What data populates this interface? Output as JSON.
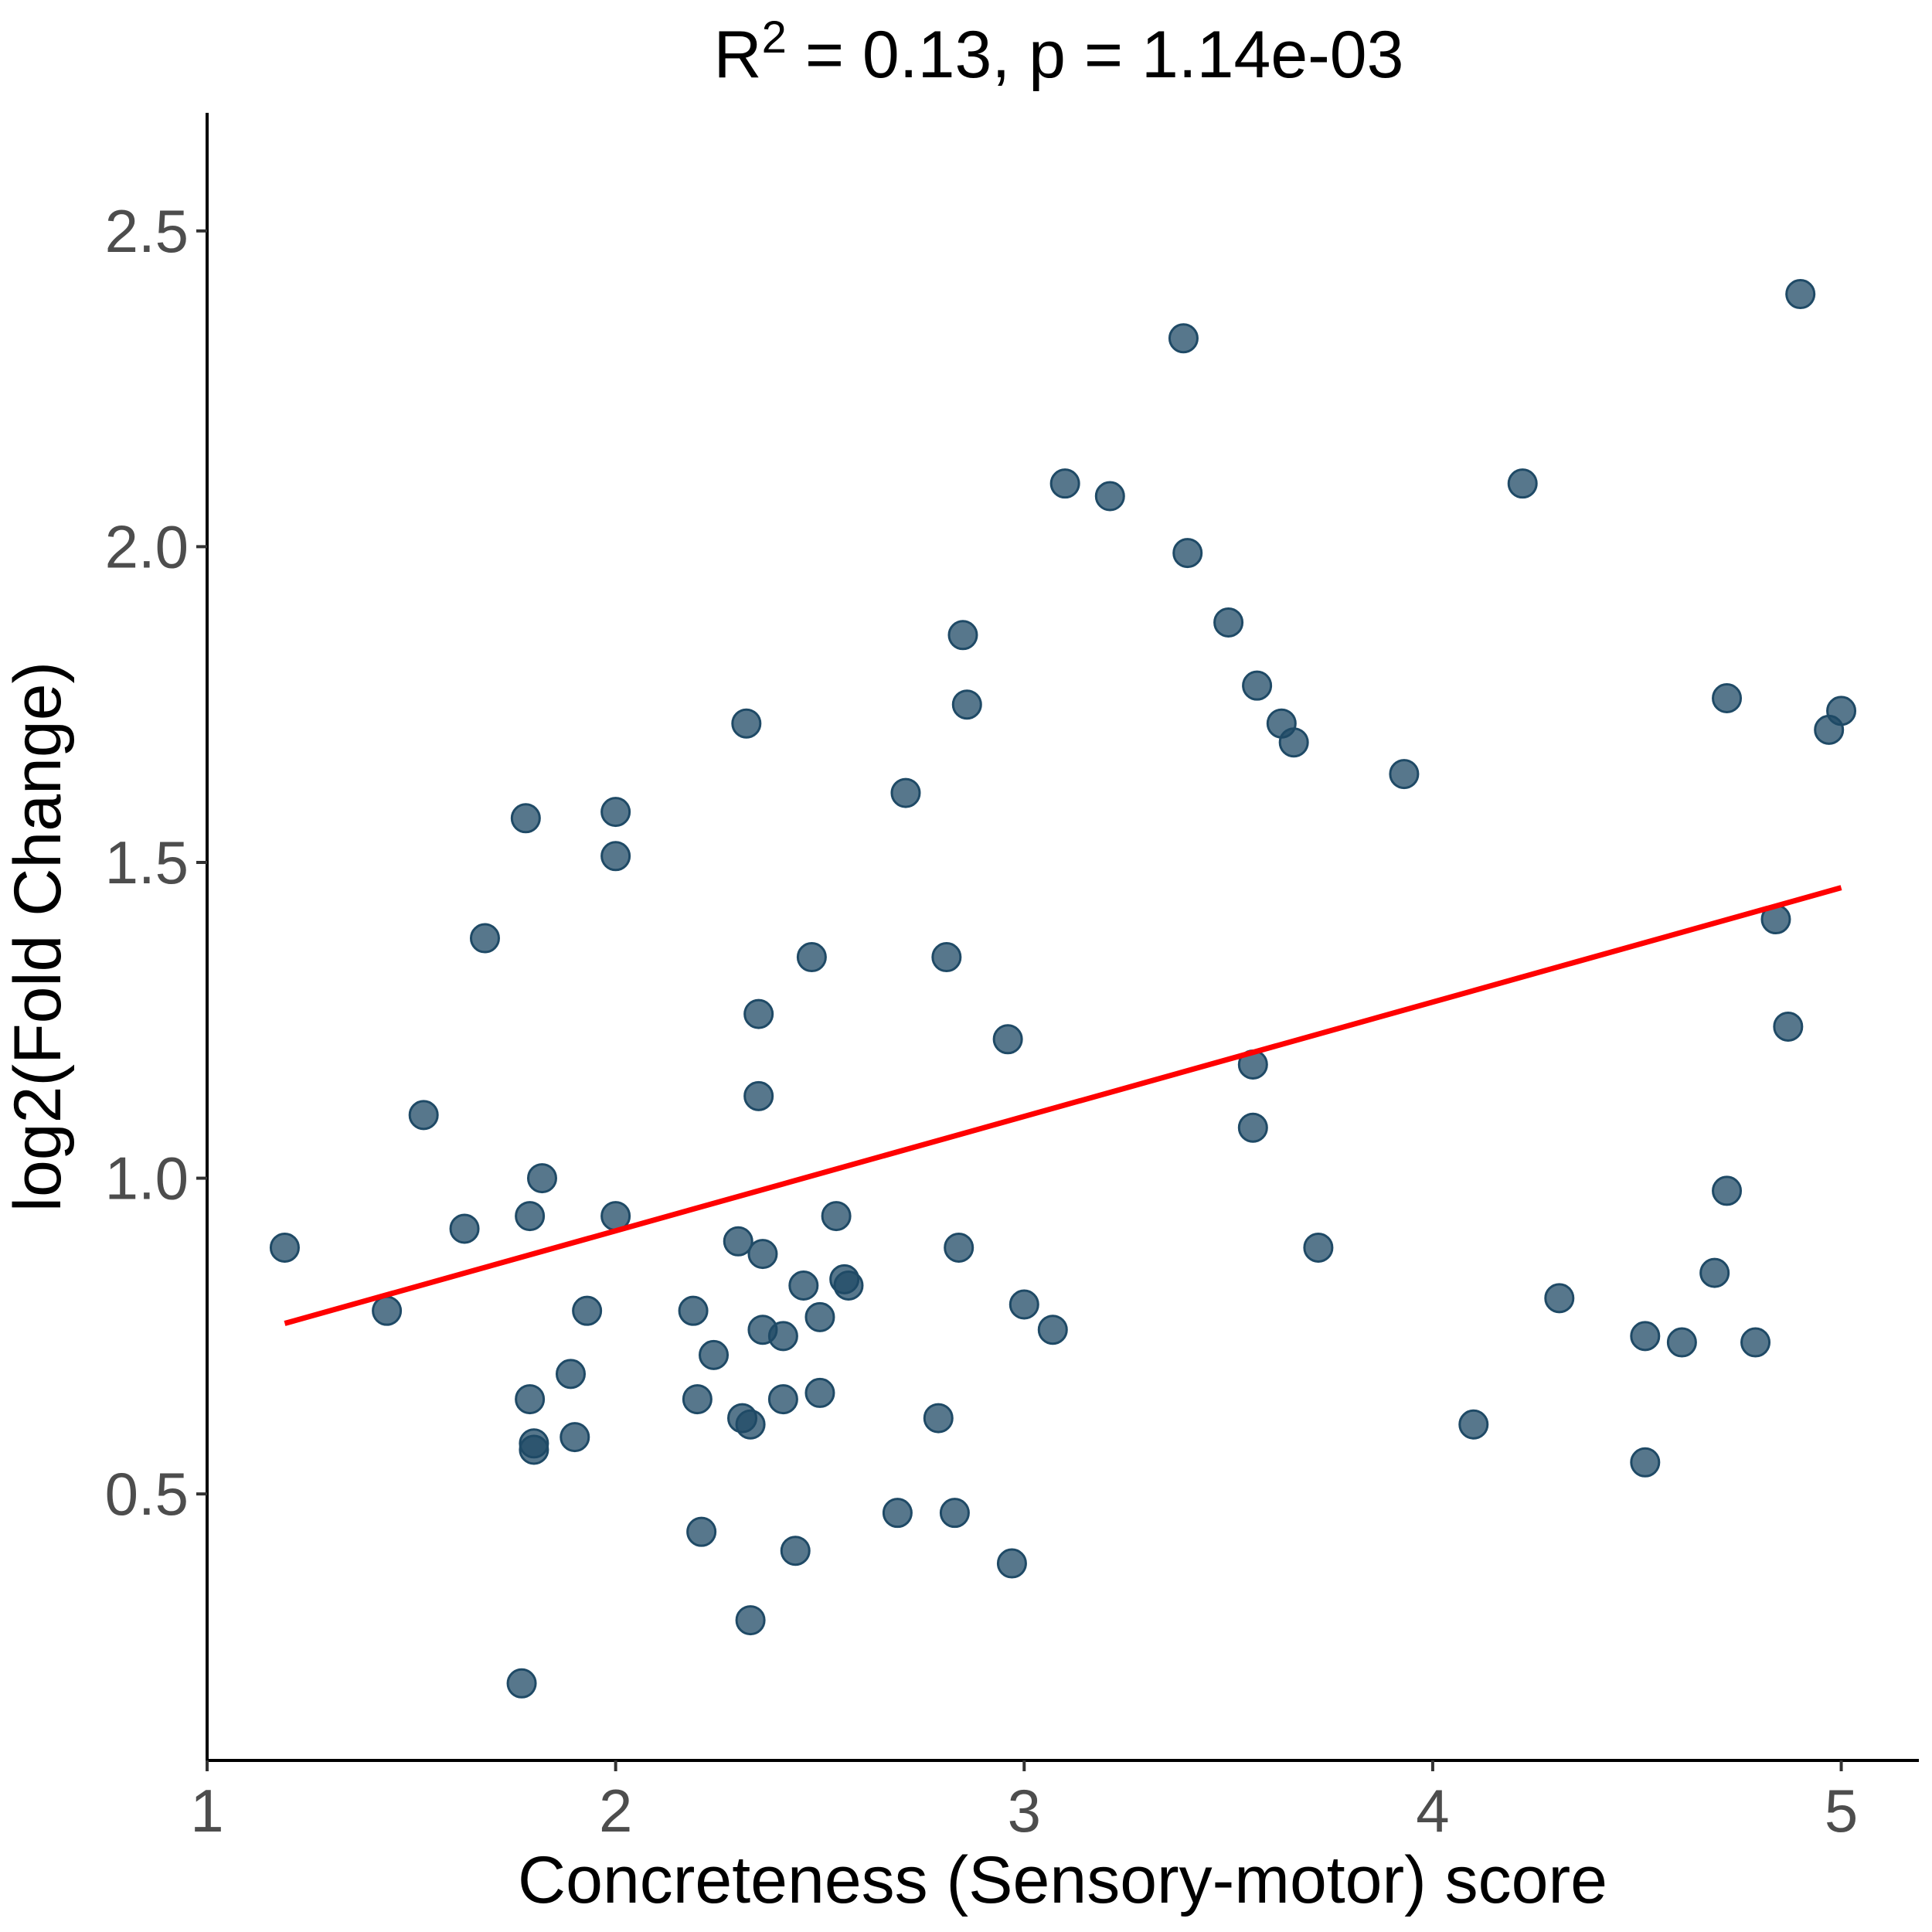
{
  "chart_data": {
    "type": "scatter",
    "title_main": "R",
    "title_sup": "2",
    "title_rest": " = 0.13, p = 1.14e-03",
    "xlabel": "Concreteness (Sensory-motor) score",
    "ylabel": "log2(Fold Change)",
    "xlim": [
      1.0,
      5.19
    ],
    "ylim": [
      0.078,
      2.687
    ],
    "x_ticks": [
      1,
      2,
      3,
      4,
      5
    ],
    "x_tick_labels": [
      "1",
      "2",
      "3",
      "4",
      "5"
    ],
    "y_ticks": [
      0.5,
      1.0,
      1.5,
      2.0,
      2.5
    ],
    "y_tick_labels": [
      "0.5",
      "1.0",
      "1.5",
      "2.0",
      "2.5"
    ],
    "grid": false,
    "point_color": "#1f4a66",
    "line_color": "#ff0000",
    "fit_line": {
      "x": [
        1.19,
        5.0
      ],
      "y": [
        0.77,
        1.46
      ]
    },
    "points": [
      {
        "x": 1.19,
        "y": 0.89
      },
      {
        "x": 1.44,
        "y": 0.79
      },
      {
        "x": 1.53,
        "y": 1.1
      },
      {
        "x": 1.63,
        "y": 0.92
      },
      {
        "x": 1.68,
        "y": 1.38
      },
      {
        "x": 1.77,
        "y": 0.2
      },
      {
        "x": 1.78,
        "y": 1.57
      },
      {
        "x": 1.79,
        "y": 0.94
      },
      {
        "x": 1.79,
        "y": 0.65
      },
      {
        "x": 1.8,
        "y": 0.58
      },
      {
        "x": 1.8,
        "y": 0.57
      },
      {
        "x": 1.82,
        "y": 1.0
      },
      {
        "x": 1.89,
        "y": 0.69
      },
      {
        "x": 1.9,
        "y": 0.59
      },
      {
        "x": 1.93,
        "y": 0.79
      },
      {
        "x": 2.0,
        "y": 1.58
      },
      {
        "x": 2.0,
        "y": 1.51
      },
      {
        "x": 2.0,
        "y": 0.94
      },
      {
        "x": 2.19,
        "y": 0.79
      },
      {
        "x": 2.2,
        "y": 0.65
      },
      {
        "x": 2.21,
        "y": 0.44
      },
      {
        "x": 2.24,
        "y": 0.72
      },
      {
        "x": 2.3,
        "y": 0.9
      },
      {
        "x": 2.31,
        "y": 0.62
      },
      {
        "x": 2.32,
        "y": 1.72
      },
      {
        "x": 2.33,
        "y": 0.61
      },
      {
        "x": 2.33,
        "y": 0.3
      },
      {
        "x": 2.35,
        "y": 1.26
      },
      {
        "x": 2.35,
        "y": 1.13
      },
      {
        "x": 2.36,
        "y": 0.88
      },
      {
        "x": 2.36,
        "y": 0.76
      },
      {
        "x": 2.41,
        "y": 0.75
      },
      {
        "x": 2.41,
        "y": 0.65
      },
      {
        "x": 2.44,
        "y": 0.41
      },
      {
        "x": 2.46,
        "y": 0.83
      },
      {
        "x": 2.48,
        "y": 1.35
      },
      {
        "x": 2.5,
        "y": 0.78
      },
      {
        "x": 2.5,
        "y": 0.66
      },
      {
        "x": 2.54,
        "y": 0.94
      },
      {
        "x": 2.56,
        "y": 0.84
      },
      {
        "x": 2.57,
        "y": 0.83
      },
      {
        "x": 2.69,
        "y": 0.47
      },
      {
        "x": 2.71,
        "y": 1.61
      },
      {
        "x": 2.79,
        "y": 0.62
      },
      {
        "x": 2.81,
        "y": 1.35
      },
      {
        "x": 2.83,
        "y": 0.47
      },
      {
        "x": 2.84,
        "y": 0.89
      },
      {
        "x": 2.85,
        "y": 1.86
      },
      {
        "x": 2.86,
        "y": 1.75
      },
      {
        "x": 2.96,
        "y": 1.22
      },
      {
        "x": 2.97,
        "y": 0.39
      },
      {
        "x": 3.0,
        "y": 0.8
      },
      {
        "x": 3.07,
        "y": 0.76
      },
      {
        "x": 3.1,
        "y": 2.1
      },
      {
        "x": 3.21,
        "y": 2.08
      },
      {
        "x": 3.39,
        "y": 2.33
      },
      {
        "x": 3.4,
        "y": 1.99
      },
      {
        "x": 3.5,
        "y": 1.88
      },
      {
        "x": 3.56,
        "y": 1.18
      },
      {
        "x": 3.56,
        "y": 1.08
      },
      {
        "x": 3.57,
        "y": 1.78
      },
      {
        "x": 3.63,
        "y": 1.72
      },
      {
        "x": 3.66,
        "y": 1.69
      },
      {
        "x": 3.72,
        "y": 0.89
      },
      {
        "x": 3.93,
        "y": 1.64
      },
      {
        "x": 4.1,
        "y": 0.61
      },
      {
        "x": 4.22,
        "y": 2.1
      },
      {
        "x": 4.31,
        "y": 0.81
      },
      {
        "x": 4.52,
        "y": 0.75
      },
      {
        "x": 4.52,
        "y": 0.55
      },
      {
        "x": 4.61,
        "y": 0.74
      },
      {
        "x": 4.69,
        "y": 0.85
      },
      {
        "x": 4.72,
        "y": 1.76
      },
      {
        "x": 4.72,
        "y": 0.98
      },
      {
        "x": 4.79,
        "y": 0.74
      },
      {
        "x": 4.84,
        "y": 1.41
      },
      {
        "x": 4.87,
        "y": 1.24
      },
      {
        "x": 4.9,
        "y": 2.4
      },
      {
        "x": 4.97,
        "y": 1.71
      },
      {
        "x": 5.0,
        "y": 1.74
      }
    ]
  }
}
